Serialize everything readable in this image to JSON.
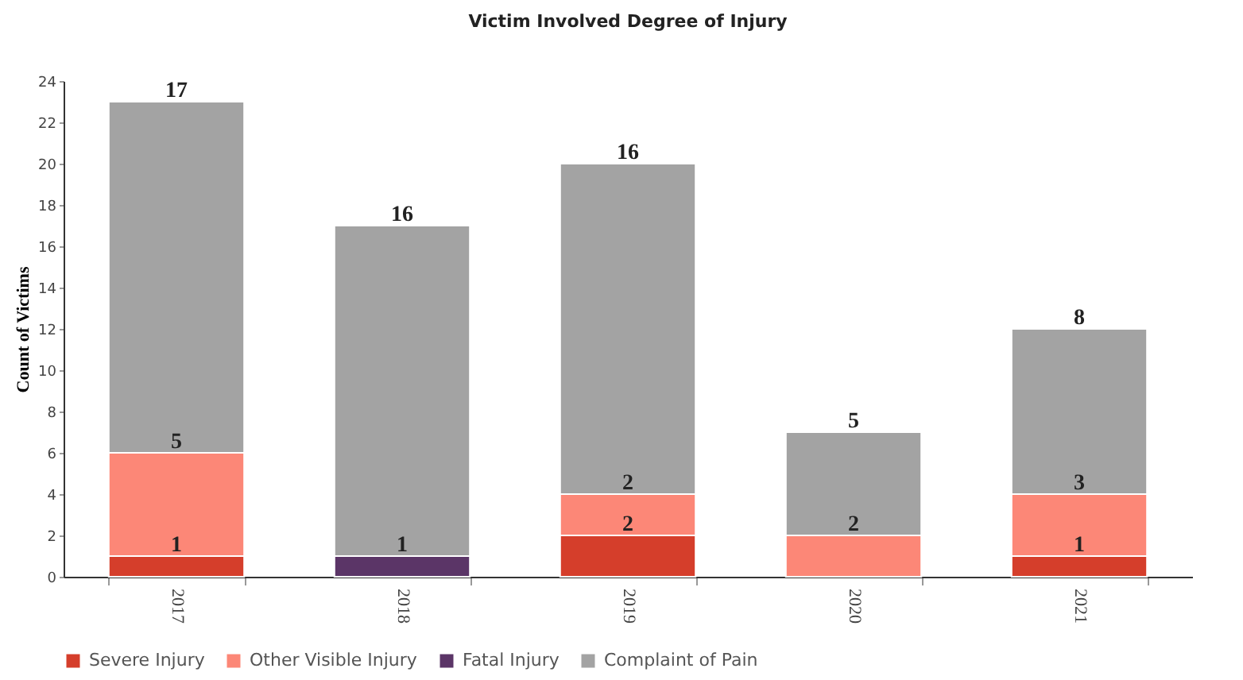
{
  "chart_data": {
    "type": "bar",
    "title": "Victim Involved Degree of Injury",
    "ylabel": "Count of Victims",
    "categories": [
      "2017",
      "2018",
      "2019",
      "2020",
      "2021"
    ],
    "series": [
      {
        "name": "Severe Injury",
        "color": "#d53e2b",
        "values": [
          1,
          null,
          2,
          null,
          1
        ]
      },
      {
        "name": "Other Visible Injury",
        "color": "#fc8777",
        "values": [
          5,
          null,
          2,
          2,
          3
        ]
      },
      {
        "name": "Fatal Injury",
        "color": "#5b3567",
        "values": [
          null,
          1,
          null,
          null,
          null
        ]
      },
      {
        "name": "Complaint of Pain",
        "color": "#a3a3a3",
        "values": [
          17,
          16,
          16,
          5,
          8
        ]
      }
    ],
    "stacked": true,
    "ylim": [
      0,
      24
    ],
    "yticks": [
      0,
      2,
      4,
      6,
      8,
      10,
      12,
      14,
      16,
      18,
      20,
      22,
      24
    ],
    "grid": false,
    "legend": "bottom",
    "data_labels": true
  }
}
